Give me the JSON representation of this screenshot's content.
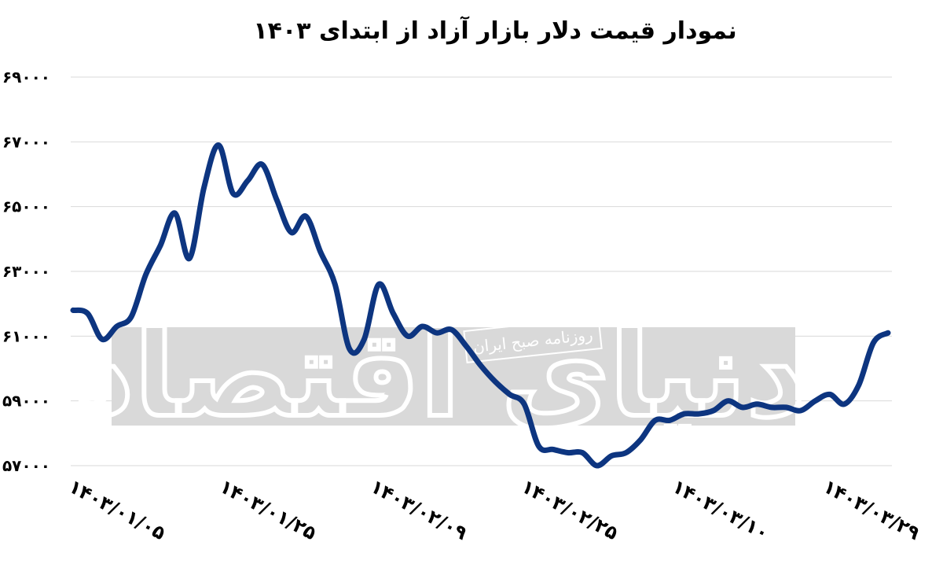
{
  "chart_data": {
    "type": "line",
    "title": "نمودار قیمت دلار بازار آزاد از ابتدای ۱۴۰۳",
    "xlabel": "",
    "ylabel": "",
    "ylim": [
      57000,
      69000
    ],
    "yticks": [
      57000,
      59000,
      61000,
      63000,
      65000,
      67000,
      69000
    ],
    "ytick_labels": [
      "۵۷۰۰۰",
      "۵۹۰۰۰",
      "۶۱۰۰۰",
      "۶۳۰۰۰",
      "۶۵۰۰۰",
      "۶۷۰۰۰",
      "۶۹۰۰۰"
    ],
    "x_tick_labels": [
      "۱۴۰۳/۰۱/۰۵",
      "۱۴۰۳/۰۱/۲۵",
      "۱۴۰۳/۰۲/۰۹",
      "۱۴۰۳/۰۲/۲۵",
      "۱۴۰۳/۰۳/۱۰",
      "۱۴۰۳/۰۳/۲۹"
    ],
    "grid": true,
    "legend": "none",
    "line_color": "#0d3580",
    "series": [
      {
        "values": [
          61800,
          61700,
          60900,
          61300,
          61600,
          62900,
          63800,
          64800,
          63400,
          65600,
          66900,
          65400,
          65800,
          66300,
          65200,
          64200,
          64700,
          63600,
          62600,
          60600,
          60900,
          62600,
          61700,
          61000,
          61300,
          61100,
          61200,
          60700,
          60100,
          59600,
          59200,
          58900,
          57600,
          57500,
          57400,
          57400,
          57000,
          57300,
          57400,
          57800,
          58400,
          58400,
          58600,
          58600,
          58700,
          59000,
          58800,
          58900,
          58800,
          58800,
          58700,
          59000,
          59200,
          58900,
          59500,
          60800,
          61100
        ],
        "values_note_removed": true
      }
    ],
    "watermark": {
      "brand": "دنیای اقتصاد",
      "tagline": "روزنامه صبح ایران",
      "color": "#d6d6d6"
    }
  }
}
